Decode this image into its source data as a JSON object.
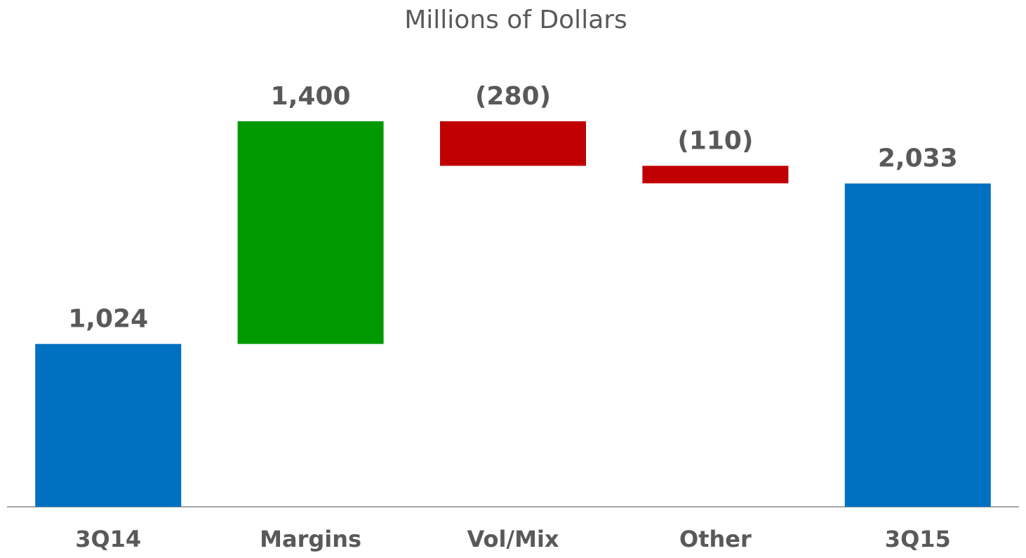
{
  "chart_data": {
    "type": "waterfall",
    "title": "Millions of Dollars",
    "categories": [
      "3Q14",
      "Margins",
      "Vol/Mix",
      "Other",
      "3Q15"
    ],
    "values": [
      1024,
      1400,
      -280,
      -110,
      2033
    ],
    "value_labels": [
      "1,024",
      "1,400",
      "(280)",
      "(110)",
      "2,033"
    ],
    "totals": [
      true,
      false,
      false,
      false,
      true
    ],
    "colors": [
      "#0070c0",
      "#009900",
      "#c00000",
      "#c00000",
      "#0070c0"
    ]
  }
}
